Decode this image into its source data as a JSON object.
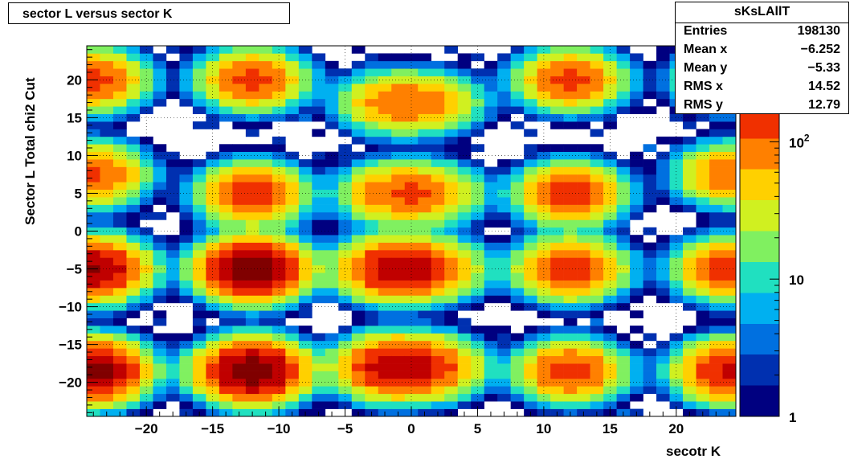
{
  "chart_data": {
    "type": "heatmap",
    "title": "sector L versus sector K",
    "xlabel": "secotr K",
    "ylabel": "Sector L   Total chi2 Cut",
    "xlim": [
      -24.5,
      24.5
    ],
    "ylim": [
      -24.5,
      24.5
    ],
    "bin_width": 1,
    "x_ticks": [
      -20,
      -15,
      -10,
      -5,
      0,
      5,
      10,
      15,
      20
    ],
    "y_ticks": [
      20,
      15,
      10,
      5,
      0,
      -5,
      -10,
      -15,
      -20
    ],
    "x_tick_labels": [
      "−20",
      "−15",
      "−10",
      "−5",
      "0",
      "5",
      "10",
      "15",
      "20"
    ],
    "y_tick_labels": [
      "20",
      "15",
      "10",
      "5",
      "0",
      "−5",
      "−10",
      "−15",
      "−20"
    ],
    "grid": true,
    "z_scale": "log",
    "z_range": [
      1,
      500
    ],
    "z_ticks": [
      {
        "value": 1,
        "label": "1"
      },
      {
        "value": 10,
        "label": "10"
      },
      {
        "value": 100,
        "label": "10",
        "exp": "2"
      }
    ],
    "palette": [
      "#000080",
      "#0030b0",
      "#0070e0",
      "#00b0f0",
      "#20e0c0",
      "#80f060",
      "#d0f020",
      "#ffd000",
      "#ff8000",
      "#f03000",
      "#c00000",
      "#800000"
    ],
    "blobs": [
      {
        "x": -12,
        "y": 20,
        "peak": 120
      },
      {
        "x": -12,
        "y": 5,
        "peak": 150
      },
      {
        "x": -12,
        "y": -5,
        "peak": 400
      },
      {
        "x": -12,
        "y": -18.5,
        "peak": 400
      },
      {
        "x": 12,
        "y": 20,
        "peak": 120
      },
      {
        "x": 12,
        "y": 5,
        "peak": 150
      },
      {
        "x": 12,
        "y": -5,
        "peak": 170
      },
      {
        "x": 12,
        "y": -18.5,
        "peak": 140
      },
      {
        "x": -24,
        "y": 20,
        "peak": 120
      },
      {
        "x": -24,
        "y": 7.5,
        "peak": 120
      },
      {
        "x": -24,
        "y": -5,
        "peak": 300
      },
      {
        "x": -24,
        "y": -18.5,
        "peak": 350
      },
      {
        "x": 24,
        "y": 20,
        "peak": 80
      },
      {
        "x": 24,
        "y": 7.5,
        "peak": 100
      },
      {
        "x": 24,
        "y": -5,
        "peak": 160
      },
      {
        "x": 24,
        "y": -18.5,
        "peak": 200
      },
      {
        "x": -1.5,
        "y": 17,
        "peak": 80
      },
      {
        "x": -1.5,
        "y": 5,
        "peak": 90
      },
      {
        "x": -1.5,
        "y": -5,
        "peak": 220
      },
      {
        "x": -1.5,
        "y": -18,
        "peak": 240
      },
      {
        "x": 1.5,
        "y": 17,
        "peak": 60
      },
      {
        "x": 1.5,
        "y": 5,
        "peak": 70
      },
      {
        "x": 1.5,
        "y": -5,
        "peak": 110
      },
      {
        "x": 1.5,
        "y": -18,
        "peak": 120
      }
    ]
  },
  "stats": {
    "name": "sKsLAllT",
    "rows": [
      {
        "key": "Entries",
        "value": "198130"
      },
      {
        "key": "Mean x",
        "value": "−6.252"
      },
      {
        "key": "Mean y",
        "value": "−5.33"
      },
      {
        "key": "RMS x",
        "value": "14.52"
      },
      {
        "key": "RMS y",
        "value": "12.79"
      }
    ]
  }
}
